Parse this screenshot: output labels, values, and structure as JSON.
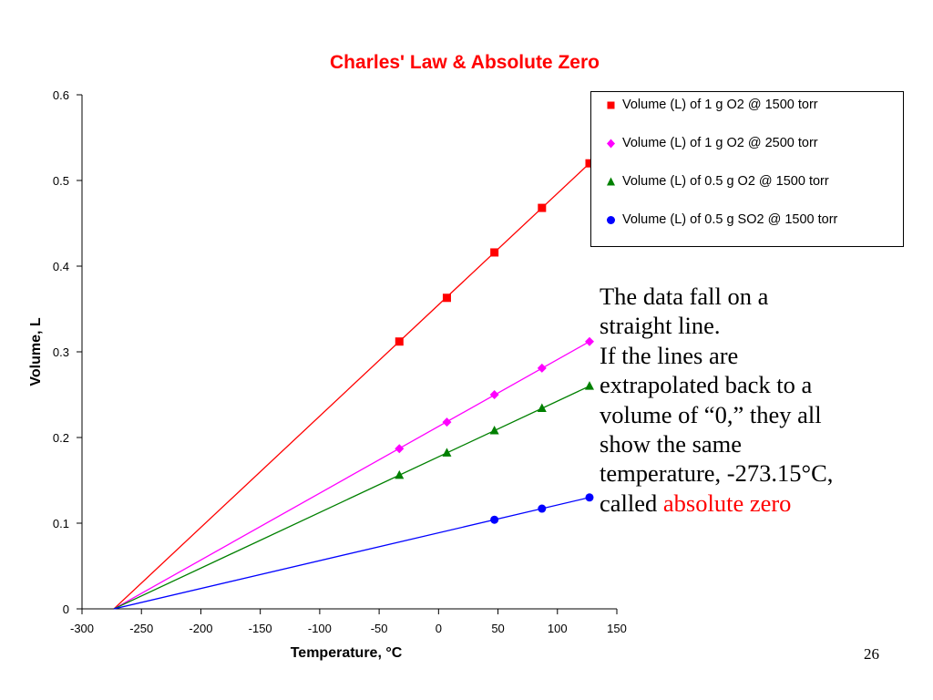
{
  "chart_data": {
    "type": "line",
    "title": "Charles' Law & Absolute Zero",
    "xlabel": "Temperature, °C",
    "ylabel": "Volume, L",
    "xlim": [
      -300,
      150
    ],
    "ylim": [
      0,
      0.6
    ],
    "xticks": [
      "-300",
      "-250",
      "-200",
      "-150",
      "-100",
      "-50",
      "0",
      "50",
      "100",
      "150"
    ],
    "yticks": [
      "0",
      "0.1",
      "0.2",
      "0.3",
      "0.4",
      "0.5",
      "0.6"
    ],
    "grid": false,
    "legend_position": "top-right",
    "fit_origin": [
      -273.15,
      0
    ],
    "series": [
      {
        "name": "Volume (L) of 1 g O2 @ 1500 torr",
        "color": "#ff0000",
        "marker": "square",
        "x": [
          -33,
          7,
          47,
          87,
          127
        ],
        "y": [
          0.312,
          0.363,
          0.416,
          0.468,
          0.52
        ]
      },
      {
        "name": "Volume (L) of 1 g O2 @ 2500 torr",
        "color": "#ff00ff",
        "marker": "diamond",
        "x": [
          -33,
          7,
          47,
          87,
          127
        ],
        "y": [
          0.187,
          0.218,
          0.25,
          0.281,
          0.312
        ]
      },
      {
        "name": "Volume (L) of 0.5 g O2 @ 1500 torr",
        "color": "#008000",
        "marker": "triangle",
        "x": [
          -33,
          7,
          47,
          87,
          127
        ],
        "y": [
          0.156,
          0.182,
          0.208,
          0.234,
          0.26
        ]
      },
      {
        "name": "Volume (L) of 0.5 g SO2 @ 1500 torr",
        "color": "#0000ff",
        "marker": "circle",
        "x": [
          47,
          87,
          127
        ],
        "y": [
          0.104,
          0.117,
          0.13
        ]
      }
    ]
  },
  "annotation": {
    "line1": "The data fall on a",
    "line2": "straight line.",
    "line3": "If the lines are",
    "line4": "extrapolated back to a",
    "line5": "volume of “0,” they all",
    "line6": "show the same",
    "line7": "temperature, -273.15°C,",
    "line8_prefix": "called ",
    "line8_highlight": "absolute zero",
    "highlight_color": "#ff0000"
  },
  "slide_number": "26"
}
